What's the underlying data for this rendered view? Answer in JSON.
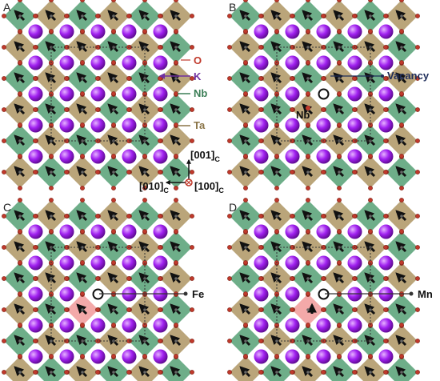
{
  "panels": [
    {
      "label": "A",
      "annotations": {
        "o": "O",
        "k": "K",
        "nb": "Nb",
        "ta": "Ta"
      },
      "axes": {
        "up": "[001]",
        "left": "[010]",
        "out": "[100]",
        "sub_up": "C",
        "sub_left": "C",
        "sub_out": "C"
      }
    },
    {
      "label": "B",
      "annotations": {
        "vacancy": "Vacancy",
        "interstitial": "Nb"
      }
    },
    {
      "label": "C",
      "annotations": {
        "dopant": "Fe"
      }
    },
    {
      "label": "D",
      "annotations": {
        "dopant": "Mn"
      }
    }
  ]
}
